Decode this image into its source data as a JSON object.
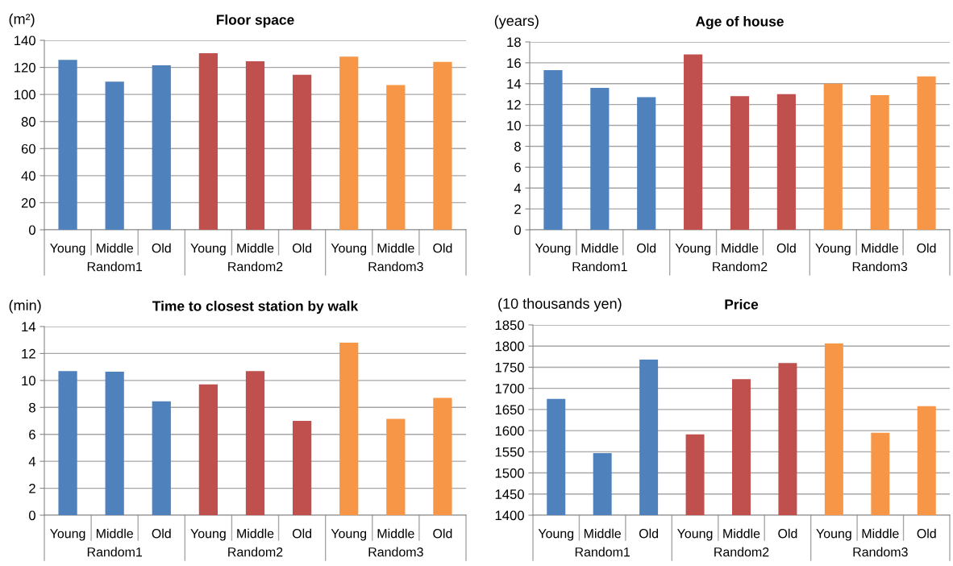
{
  "chart_data": [
    {
      "type": "bar",
      "title": "Floor space",
      "ylabel": "(m²)",
      "categories": [
        "Young",
        "Middle",
        "Old",
        "Young",
        "Middle",
        "Old",
        "Young",
        "Middle",
        "Old"
      ],
      "ylim": [
        0,
        140
      ],
      "yticks": [
        0,
        20,
        40,
        60,
        80,
        100,
        120,
        140
      ],
      "grid": "y",
      "series": [
        {
          "name": "Random1",
          "color": "#4f81bd",
          "values": [
            125.5,
            109.5,
            121.5,
            null,
            null,
            null,
            null,
            null,
            null
          ]
        },
        {
          "name": "Random2",
          "color": "#c0504d",
          "values": [
            null,
            null,
            null,
            130.5,
            124.5,
            114.5,
            null,
            null,
            null
          ]
        },
        {
          "name": "Random3",
          "color": "#f79646",
          "values": [
            null,
            null,
            null,
            null,
            null,
            null,
            128,
            107,
            124
          ]
        }
      ]
    },
    {
      "type": "bar",
      "title": "Age of house",
      "ylabel": "(years)",
      "categories": [
        "Young",
        "Middle",
        "Old",
        "Young",
        "Middle",
        "Old",
        "Young",
        "Middle",
        "Old"
      ],
      "ylim": [
        0,
        18
      ],
      "yticks": [
        0,
        2,
        4,
        6,
        8,
        10,
        12,
        14,
        16,
        18
      ],
      "grid": "y",
      "series": [
        {
          "name": "Random1",
          "color": "#4f81bd",
          "values": [
            15.3,
            13.6,
            12.7,
            null,
            null,
            null,
            null,
            null,
            null
          ]
        },
        {
          "name": "Random2",
          "color": "#c0504d",
          "values": [
            null,
            null,
            null,
            16.8,
            12.8,
            13.0,
            null,
            null,
            null
          ]
        },
        {
          "name": "Random3",
          "color": "#f79646",
          "values": [
            null,
            null,
            null,
            null,
            null,
            null,
            14.0,
            12.9,
            14.7
          ]
        }
      ]
    },
    {
      "type": "bar",
      "title": "Time to closest station by walk",
      "ylabel": "(min)",
      "categories": [
        "Young",
        "Middle",
        "Old",
        "Young",
        "Middle",
        "Old",
        "Young",
        "Middle",
        "Old"
      ],
      "ylim": [
        0,
        14
      ],
      "yticks": [
        0,
        2,
        4,
        6,
        8,
        10,
        12,
        14
      ],
      "grid": "y",
      "series": [
        {
          "name": "Random1",
          "color": "#4f81bd",
          "values": [
            10.7,
            10.65,
            8.45,
            null,
            null,
            null,
            null,
            null,
            null
          ]
        },
        {
          "name": "Random2",
          "color": "#c0504d",
          "values": [
            null,
            null,
            null,
            9.7,
            10.7,
            7.0,
            null,
            null,
            null
          ]
        },
        {
          "name": "Random3",
          "color": "#f79646",
          "values": [
            null,
            null,
            null,
            null,
            null,
            null,
            12.8,
            7.15,
            8.7
          ]
        }
      ]
    },
    {
      "type": "bar",
      "title": "Price",
      "ylabel": "(10 thousands yen)",
      "categories": [
        "Young",
        "Middle",
        "Old",
        "Young",
        "Middle",
        "Old",
        "Young",
        "Middle",
        "Old"
      ],
      "ylim": [
        1400,
        1850
      ],
      "yticks": [
        1400,
        1450,
        1500,
        1550,
        1600,
        1650,
        1700,
        1750,
        1800,
        1850
      ],
      "grid": "y",
      "series": [
        {
          "name": "Random1",
          "color": "#4f81bd",
          "values": [
            1675,
            1547,
            1768,
            null,
            null,
            null,
            null,
            null,
            null
          ]
        },
        {
          "name": "Random2",
          "color": "#c0504d",
          "values": [
            null,
            null,
            null,
            1591,
            1722,
            1760,
            null,
            null,
            null
          ]
        },
        {
          "name": "Random3",
          "color": "#f79646",
          "values": [
            null,
            null,
            null,
            null,
            null,
            null,
            1806,
            1595,
            1658
          ]
        }
      ]
    }
  ]
}
